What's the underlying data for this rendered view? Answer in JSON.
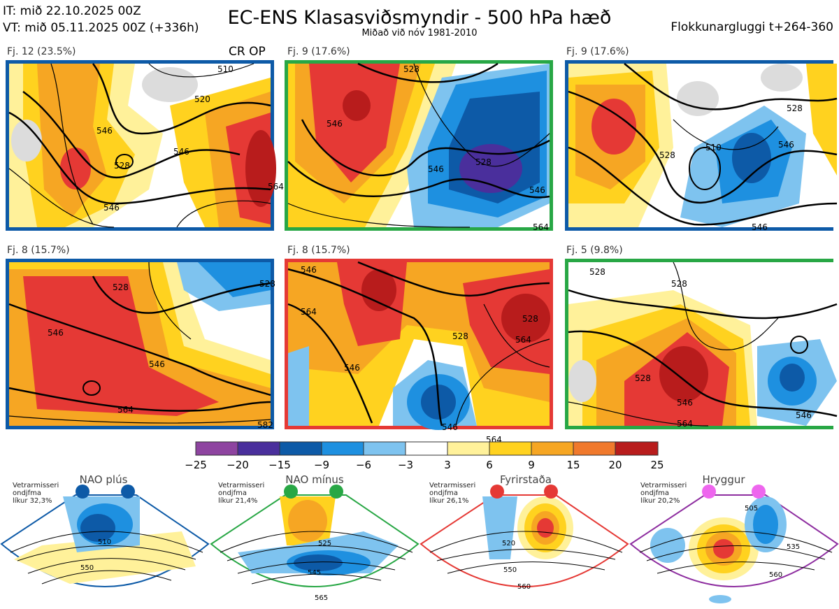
{
  "header": {
    "it": "IT: mið 22.10.2025 00Z",
    "vt": "VT: mið 05.11.2025 00Z  (+336h)",
    "title": "EC-ENS Klasasviðsmyndir - 500 hPa hæð",
    "subtitle": "Miðað við nóv 1981-2010",
    "window": "Flokkunargluggi t+264-360",
    "crop": "CR OP"
  },
  "panels": [
    {
      "label": "Fj. 12 (23.5%)",
      "frame": "blue",
      "contours": [
        "546",
        "528",
        "510",
        "546",
        "520",
        "546",
        "564"
      ]
    },
    {
      "label": "Fj. 9 (17.6%)",
      "frame": "green",
      "contours": [
        "528",
        "546",
        "546",
        "528",
        "546",
        "564"
      ]
    },
    {
      "label": "Fj. 9 (17.6%)",
      "frame": "blue",
      "contours": [
        "528",
        "528",
        "510",
        "546",
        "546"
      ]
    },
    {
      "label": "Fj. 8 (15.7%)",
      "frame": "blue",
      "contours": [
        "528",
        "546",
        "546",
        "564",
        "582",
        "528"
      ]
    },
    {
      "label": "Fj. 8 (15.7%)",
      "frame": "red",
      "contours": [
        "546",
        "564",
        "528",
        "546",
        "564",
        "528",
        "546",
        "564"
      ]
    },
    {
      "label": "Fj. 5 (9.8%)",
      "frame": "green",
      "contours": [
        "528",
        "528",
        "528",
        "546",
        "564",
        "546"
      ]
    }
  ],
  "colorbar": {
    "colors": [
      "#8e44a0",
      "#4a2f9c",
      "#0d5aa7",
      "#1e90e0",
      "#7ec3ef",
      "#ffffff",
      "#fff19a",
      "#ffd21f",
      "#f6a623",
      "#f0792c",
      "#e53935",
      "#b81c1c"
    ],
    "labels": [
      "−25",
      "−20",
      "−15",
      "−9",
      "−6",
      "−3",
      "3",
      "6",
      "9",
      "15",
      "20",
      "25"
    ]
  },
  "regimes": [
    {
      "name": "NAO plús",
      "note": [
        "Vetrarmisseri",
        "ondjfma",
        "líkur 32,3%"
      ],
      "color": "#0d5aa7",
      "contours": [
        "510",
        "550"
      ]
    },
    {
      "name": "NAO mínus",
      "note": [
        "Vetrarmisseri",
        "ondjfma",
        "líkur 21,4%"
      ],
      "color": "#28a745",
      "contours": [
        "525",
        "545",
        "565"
      ]
    },
    {
      "name": "Fyrirstaða",
      "note": [
        "Vetrarmisseri",
        "ondjfma",
        "líkur 26,1%"
      ],
      "color": "#e53935",
      "contours": [
        "520",
        "550",
        "560"
      ]
    },
    {
      "name": "Hryggur",
      "note": [
        "Vetrarmisseri",
        "ondjfma",
        "líkur 20,2%"
      ],
      "color": "#8e2ea0",
      "dot": "#ee66ee",
      "contours": [
        "505",
        "535",
        "560"
      ]
    }
  ]
}
